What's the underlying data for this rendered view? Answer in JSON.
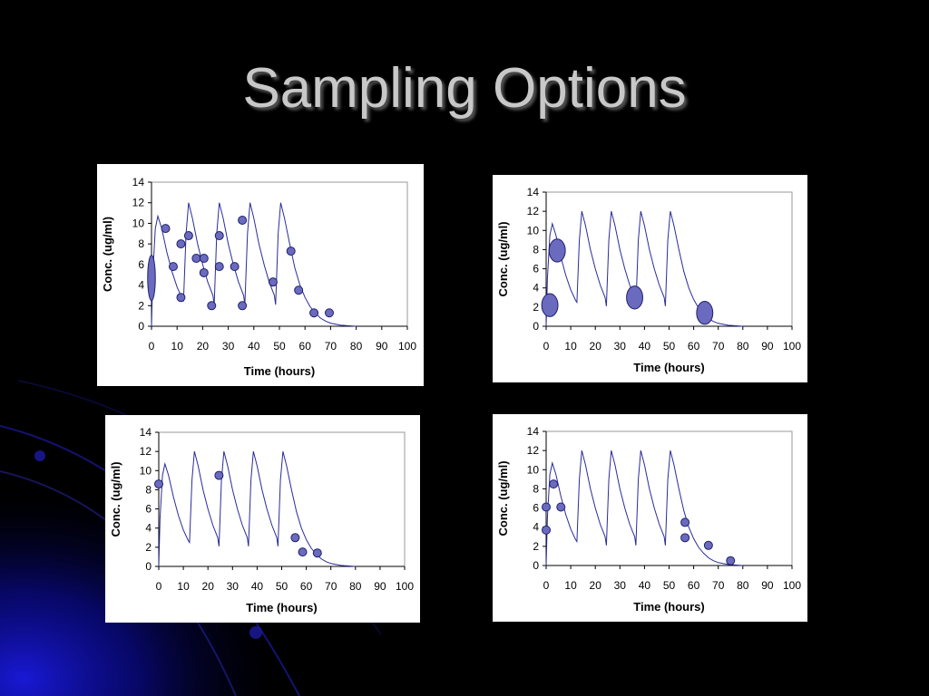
{
  "slide": {
    "title": "Sampling Options"
  },
  "colors": {
    "background": "#000000",
    "curve": "#2b2b9a",
    "marker_fill": "#6a6abf",
    "marker_stroke": "#20206a",
    "plot_border": "#999999",
    "title": "#c8c8c8"
  },
  "chart_data": [
    {
      "id": "chart-tl",
      "type": "scatter",
      "xlabel": "Time (hours)",
      "ylabel": "Conc. (ug/ml)",
      "xlim": [
        0,
        100
      ],
      "ylim": [
        0,
        14
      ],
      "xticks": [
        0,
        10,
        20,
        30,
        40,
        50,
        60,
        70,
        80,
        90,
        100
      ],
      "yticks": [
        0,
        2,
        4,
        6,
        8,
        10,
        12,
        14
      ],
      "grid": false,
      "curve": [
        [
          0,
          0
        ],
        [
          0.5,
          5
        ],
        [
          1.5,
          9.5
        ],
        [
          2.5,
          10.7
        ],
        [
          4,
          9.5
        ],
        [
          6,
          7.2
        ],
        [
          8,
          5.3
        ],
        [
          10,
          3.8
        ],
        [
          12,
          2.7
        ],
        [
          12.5,
          2.5
        ],
        [
          13.5,
          9
        ],
        [
          14.5,
          12
        ],
        [
          16,
          10.5
        ],
        [
          18,
          8
        ],
        [
          20,
          6
        ],
        [
          22,
          4.3
        ],
        [
          24,
          3
        ],
        [
          24.5,
          2.1
        ],
        [
          25.5,
          9
        ],
        [
          26.5,
          12
        ],
        [
          28,
          10.5
        ],
        [
          30,
          8
        ],
        [
          32,
          6
        ],
        [
          34,
          4.3
        ],
        [
          36,
          3
        ],
        [
          36.5,
          2.1
        ],
        [
          37.5,
          9
        ],
        [
          38.5,
          12
        ],
        [
          40,
          10.5
        ],
        [
          42,
          8
        ],
        [
          44,
          6
        ],
        [
          46,
          4.3
        ],
        [
          48,
          3
        ],
        [
          48.5,
          2.1
        ],
        [
          49.5,
          9
        ],
        [
          50.5,
          12
        ],
        [
          52,
          10.5
        ],
        [
          54,
          8
        ],
        [
          56,
          5.7
        ],
        [
          58,
          4
        ],
        [
          60,
          2.8
        ],
        [
          62,
          1.9
        ],
        [
          64,
          1.3
        ],
        [
          66,
          0.8
        ],
        [
          68,
          0.5
        ],
        [
          70,
          0.3
        ],
        [
          74,
          0.1
        ],
        [
          80,
          0
        ]
      ],
      "points": [
        {
          "x": 0,
          "y": 4.7,
          "rx": 1.5,
          "ry": 2.2
        },
        {
          "x": 5.5,
          "y": 9.5
        },
        {
          "x": 8.5,
          "y": 5.8
        },
        {
          "x": 11.5,
          "y": 8
        },
        {
          "x": 11.5,
          "y": 2.8
        },
        {
          "x": 14.5,
          "y": 8.8
        },
        {
          "x": 17.5,
          "y": 6.6
        },
        {
          "x": 20.5,
          "y": 6.6
        },
        {
          "x": 20.5,
          "y": 5.2
        },
        {
          "x": 23.5,
          "y": 2
        },
        {
          "x": 26.5,
          "y": 8.8
        },
        {
          "x": 26.5,
          "y": 5.8
        },
        {
          "x": 32.5,
          "y": 5.8
        },
        {
          "x": 35.5,
          "y": 10.3
        },
        {
          "x": 35.5,
          "y": 2
        },
        {
          "x": 47.5,
          "y": 4.3
        },
        {
          "x": 54.5,
          "y": 7.3
        },
        {
          "x": 57.5,
          "y": 3.5
        },
        {
          "x": 63.5,
          "y": 1.3
        },
        {
          "x": 69.5,
          "y": 1.3
        }
      ]
    },
    {
      "id": "chart-tr",
      "type": "scatter",
      "xlabel": "Time (hours)",
      "ylabel": "Conc. (ug/ml)",
      "xlim": [
        0,
        100
      ],
      "ylim": [
        0,
        14
      ],
      "xticks": [
        0,
        10,
        20,
        30,
        40,
        50,
        60,
        70,
        80,
        90,
        100
      ],
      "yticks": [
        0,
        2,
        4,
        6,
        8,
        10,
        12,
        14
      ],
      "grid": false,
      "curve": [
        [
          0,
          0
        ],
        [
          0.5,
          5
        ],
        [
          1.5,
          9.5
        ],
        [
          2.5,
          10.7
        ],
        [
          4,
          9.5
        ],
        [
          6,
          7.2
        ],
        [
          8,
          5.3
        ],
        [
          10,
          3.8
        ],
        [
          12,
          2.7
        ],
        [
          12.5,
          2.5
        ],
        [
          13.5,
          9
        ],
        [
          14.5,
          12
        ],
        [
          16,
          10.5
        ],
        [
          18,
          8
        ],
        [
          20,
          6
        ],
        [
          22,
          4.3
        ],
        [
          24,
          3
        ],
        [
          24.5,
          2.1
        ],
        [
          25.5,
          9
        ],
        [
          26.5,
          12
        ],
        [
          28,
          10.5
        ],
        [
          30,
          8
        ],
        [
          32,
          6
        ],
        [
          34,
          4.3
        ],
        [
          36,
          3
        ],
        [
          36.5,
          2.1
        ],
        [
          37.5,
          9
        ],
        [
          38.5,
          12
        ],
        [
          40,
          10.5
        ],
        [
          42,
          8
        ],
        [
          44,
          6
        ],
        [
          46,
          4.3
        ],
        [
          48,
          3
        ],
        [
          48.5,
          2.1
        ],
        [
          49.5,
          9
        ],
        [
          50.5,
          12
        ],
        [
          52,
          10.5
        ],
        [
          54,
          8
        ],
        [
          56,
          5.7
        ],
        [
          58,
          4
        ],
        [
          60,
          2.8
        ],
        [
          62,
          1.9
        ],
        [
          64,
          1.3
        ],
        [
          66,
          0.8
        ],
        [
          68,
          0.5
        ],
        [
          70,
          0.3
        ],
        [
          74,
          0.1
        ],
        [
          80,
          0
        ]
      ],
      "points": [
        {
          "x": 1.5,
          "y": 2.2,
          "rx": 3.3,
          "ry": 1.2
        },
        {
          "x": 4.5,
          "y": 7.9,
          "rx": 3.3,
          "ry": 1.2
        },
        {
          "x": 36,
          "y": 3,
          "rx": 3.3,
          "ry": 1.2
        },
        {
          "x": 64.5,
          "y": 1.4,
          "rx": 3.3,
          "ry": 1.2
        }
      ]
    },
    {
      "id": "chart-bl",
      "type": "scatter",
      "xlabel": "Time (hours)",
      "ylabel": "Conc. (ug/ml)",
      "xlim": [
        0,
        100
      ],
      "ylim": [
        0,
        14
      ],
      "xticks": [
        0,
        10,
        20,
        30,
        40,
        50,
        60,
        70,
        80,
        90,
        100
      ],
      "yticks": [
        0,
        2,
        4,
        6,
        8,
        10,
        12,
        14
      ],
      "grid": false,
      "curve": [
        [
          0,
          0
        ],
        [
          0.5,
          5
        ],
        [
          1.5,
          9.5
        ],
        [
          2.5,
          10.7
        ],
        [
          4,
          9.5
        ],
        [
          6,
          7.2
        ],
        [
          8,
          5.3
        ],
        [
          10,
          3.8
        ],
        [
          12,
          2.7
        ],
        [
          12.5,
          2.5
        ],
        [
          13.5,
          9
        ],
        [
          14.5,
          12
        ],
        [
          16,
          10.5
        ],
        [
          18,
          8
        ],
        [
          20,
          6
        ],
        [
          22,
          4.3
        ],
        [
          24,
          3
        ],
        [
          24.5,
          2.1
        ],
        [
          25.5,
          9
        ],
        [
          26.5,
          12
        ],
        [
          28,
          10.5
        ],
        [
          30,
          8
        ],
        [
          32,
          6
        ],
        [
          34,
          4.3
        ],
        [
          36,
          3
        ],
        [
          36.5,
          2.1
        ],
        [
          37.5,
          9
        ],
        [
          38.5,
          12
        ],
        [
          40,
          10.5
        ],
        [
          42,
          8
        ],
        [
          44,
          6
        ],
        [
          46,
          4.3
        ],
        [
          48,
          3
        ],
        [
          48.5,
          2.1
        ],
        [
          49.5,
          9
        ],
        [
          50.5,
          12
        ],
        [
          52,
          10.5
        ],
        [
          54,
          8
        ],
        [
          56,
          5.7
        ],
        [
          58,
          4
        ],
        [
          60,
          2.8
        ],
        [
          62,
          1.9
        ],
        [
          64,
          1.3
        ],
        [
          66,
          0.8
        ],
        [
          68,
          0.5
        ],
        [
          70,
          0.3
        ],
        [
          74,
          0.1
        ],
        [
          80,
          0
        ]
      ],
      "points": [
        {
          "x": 0,
          "y": 8.6
        },
        {
          "x": 24.5,
          "y": 9.5
        },
        {
          "x": 55.5,
          "y": 3
        },
        {
          "x": 58.5,
          "y": 1.5
        },
        {
          "x": 64.5,
          "y": 1.4
        }
      ]
    },
    {
      "id": "chart-br",
      "type": "scatter",
      "xlabel": "Time (hours)",
      "ylabel": "Conc. (ug/ml)",
      "xlim": [
        0,
        100
      ],
      "ylim": [
        0,
        14
      ],
      "xticks": [
        0,
        10,
        20,
        30,
        40,
        50,
        60,
        70,
        80,
        90,
        100
      ],
      "yticks": [
        0,
        2,
        4,
        6,
        8,
        10,
        12,
        14
      ],
      "grid": false,
      "curve": [
        [
          0,
          0
        ],
        [
          0.5,
          5
        ],
        [
          1.5,
          9.5
        ],
        [
          2.5,
          10.7
        ],
        [
          4,
          9.5
        ],
        [
          6,
          7.2
        ],
        [
          8,
          5.3
        ],
        [
          10,
          3.8
        ],
        [
          12,
          2.7
        ],
        [
          12.5,
          2.5
        ],
        [
          13.5,
          9
        ],
        [
          14.5,
          12
        ],
        [
          16,
          10.5
        ],
        [
          18,
          8
        ],
        [
          20,
          6
        ],
        [
          22,
          4.3
        ],
        [
          24,
          3
        ],
        [
          24.5,
          2.1
        ],
        [
          25.5,
          9
        ],
        [
          26.5,
          12
        ],
        [
          28,
          10.5
        ],
        [
          30,
          8
        ],
        [
          32,
          6
        ],
        [
          34,
          4.3
        ],
        [
          36,
          3
        ],
        [
          36.5,
          2.1
        ],
        [
          37.5,
          9
        ],
        [
          38.5,
          12
        ],
        [
          40,
          10.5
        ],
        [
          42,
          8
        ],
        [
          44,
          6
        ],
        [
          46,
          4.3
        ],
        [
          48,
          3
        ],
        [
          48.5,
          2.1
        ],
        [
          49.5,
          9
        ],
        [
          50.5,
          12
        ],
        [
          52,
          10.5
        ],
        [
          54,
          8
        ],
        [
          56,
          5.7
        ],
        [
          58,
          4
        ],
        [
          60,
          2.8
        ],
        [
          62,
          1.9
        ],
        [
          64,
          1.3
        ],
        [
          66,
          0.8
        ],
        [
          68,
          0.5
        ],
        [
          70,
          0.3
        ],
        [
          74,
          0.1
        ],
        [
          80,
          0
        ]
      ],
      "points": [
        {
          "x": 0,
          "y": 6.1
        },
        {
          "x": 0,
          "y": 3.7
        },
        {
          "x": 3,
          "y": 8.5
        },
        {
          "x": 6,
          "y": 6.1
        },
        {
          "x": 56.5,
          "y": 4.5
        },
        {
          "x": 56.5,
          "y": 2.9
        },
        {
          "x": 66,
          "y": 2.1
        },
        {
          "x": 75,
          "y": 0.5
        }
      ]
    }
  ]
}
